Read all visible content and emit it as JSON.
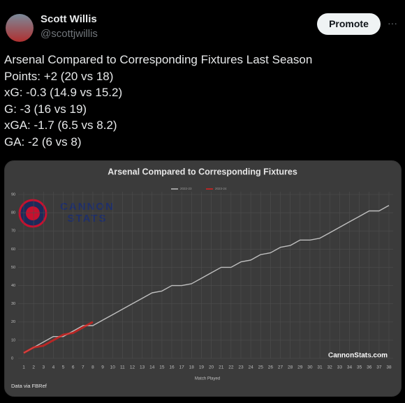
{
  "tweet": {
    "author": "Scott Willis",
    "handle": "@scottjwillis",
    "button": "Promote",
    "menu": "···",
    "lines": [
      "Arsenal Compared to Corresponding Fixtures Last Season",
      "Points: +2 (20 vs 18)",
      "xG: -0.3 (14.9 vs 15.2)",
      "G: -3 (16 vs 19)",
      "xGA: -1.7 (6.5 vs 8.2)",
      "GA: -2 (6 vs 8)"
    ]
  },
  "image": {
    "logo": [
      "CANNON",
      "STATS"
    ],
    "watermark": "CannonStats.com",
    "source": "Data via FBRef"
  },
  "chart_data": {
    "type": "line",
    "title": "Arsenal Compared to Corresponding Fixtures",
    "x_label": "Match Played",
    "x": [
      1,
      2,
      3,
      4,
      5,
      6,
      7,
      8,
      9,
      10,
      11,
      12,
      13,
      14,
      15,
      16,
      17,
      18,
      19,
      20,
      21,
      22,
      23,
      24,
      25,
      26,
      27,
      28,
      29,
      30,
      31,
      32,
      33,
      34,
      35,
      36,
      37,
      38
    ],
    "xlim": [
      1,
      38
    ],
    "xticks": [
      1,
      2,
      3,
      4,
      5,
      6,
      7,
      8,
      9,
      10,
      11,
      12,
      13,
      14,
      15,
      16,
      17,
      18,
      19,
      20,
      21,
      22,
      23,
      24,
      25,
      26,
      27,
      28,
      29,
      30,
      31,
      32,
      33,
      34,
      35,
      36,
      37,
      38
    ],
    "ylim": [
      0,
      90
    ],
    "yticks": [
      0,
      10,
      20,
      30,
      40,
      50,
      60,
      70,
      80,
      90
    ],
    "grid": true,
    "legend": "top",
    "series": [
      {
        "name": "2022-23",
        "color": "#bfbfbf",
        "values": [
          3,
          6,
          9,
          12,
          12,
          15,
          18,
          18,
          21,
          24,
          27,
          30,
          33,
          36,
          37,
          40,
          40,
          41,
          44,
          47,
          50,
          50,
          53,
          54,
          57,
          58,
          61,
          62,
          65,
          65,
          66,
          69,
          72,
          75,
          78,
          81,
          81,
          84
        ]
      },
      {
        "name": "2023-24",
        "color": "#e0201e",
        "values": [
          3,
          6,
          7,
          10,
          13,
          14,
          17,
          20,
          null,
          null,
          null,
          null,
          null,
          null,
          null,
          null,
          null,
          null,
          null,
          null,
          null,
          null,
          null,
          null,
          null,
          null,
          null,
          null,
          null,
          null,
          null,
          null,
          null,
          null,
          null,
          null,
          null,
          null
        ]
      }
    ]
  }
}
